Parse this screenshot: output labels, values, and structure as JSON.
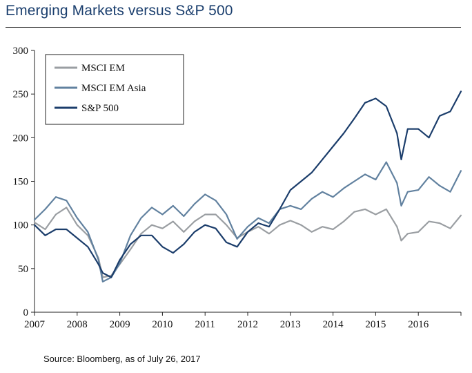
{
  "title": "Emerging Markets versus S&P 500",
  "source": "Source: Bloomberg, as of July 26, 2017",
  "chart_data": {
    "type": "line",
    "ylim": [
      0,
      300
    ],
    "yticks": [
      0,
      50,
      100,
      150,
      200,
      250,
      300
    ],
    "xlim": [
      2007,
      2017.0
    ],
    "xticks": [
      2007,
      2008,
      2009,
      2010,
      2011,
      2012,
      2013,
      2014,
      2015,
      2016
    ],
    "legend": "top-left",
    "series": [
      {
        "name": "MSCI EM",
        "color": "#9a9ea2",
        "x": [
          2007.0,
          2007.25,
          2007.5,
          2007.75,
          2008.0,
          2008.25,
          2008.5,
          2008.6,
          2008.8,
          2009.0,
          2009.25,
          2009.5,
          2009.75,
          2010.0,
          2010.25,
          2010.5,
          2010.75,
          2011.0,
          2011.25,
          2011.5,
          2011.75,
          2012.0,
          2012.25,
          2012.5,
          2012.75,
          2013.0,
          2013.25,
          2013.5,
          2013.75,
          2014.0,
          2014.25,
          2014.5,
          2014.75,
          2015.0,
          2015.25,
          2015.5,
          2015.6,
          2015.75,
          2016.0,
          2016.25,
          2016.5,
          2016.75,
          2017.0
        ],
        "values": [
          103,
          95,
          112,
          120,
          100,
          88,
          62,
          40,
          42,
          55,
          72,
          90,
          100,
          96,
          104,
          92,
          104,
          112,
          112,
          100,
          85,
          92,
          98,
          90,
          100,
          105,
          100,
          92,
          98,
          95,
          104,
          115,
          118,
          112,
          118,
          98,
          82,
          90,
          92,
          104,
          102,
          96,
          111
        ]
      },
      {
        "name": "MSCI EM Asia",
        "color": "#61819f",
        "x": [
          2007.0,
          2007.25,
          2007.5,
          2007.75,
          2008.0,
          2008.25,
          2008.5,
          2008.6,
          2008.8,
          2009.0,
          2009.25,
          2009.5,
          2009.75,
          2010.0,
          2010.25,
          2010.5,
          2010.75,
          2011.0,
          2011.25,
          2011.5,
          2011.75,
          2012.0,
          2012.25,
          2012.5,
          2012.75,
          2013.0,
          2013.25,
          2013.5,
          2013.75,
          2014.0,
          2014.25,
          2014.5,
          2014.75,
          2015.0,
          2015.25,
          2015.5,
          2015.6,
          2015.75,
          2016.0,
          2016.25,
          2016.5,
          2016.75,
          2017.0
        ],
        "values": [
          106,
          118,
          132,
          128,
          108,
          92,
          60,
          35,
          40,
          56,
          88,
          108,
          120,
          112,
          122,
          110,
          124,
          135,
          128,
          112,
          84,
          98,
          108,
          102,
          118,
          122,
          118,
          130,
          138,
          132,
          142,
          150,
          158,
          152,
          172,
          148,
          122,
          138,
          140,
          155,
          145,
          138,
          162
        ]
      },
      {
        "name": "S&P 500",
        "color": "#1b3d6b",
        "x": [
          2007.0,
          2007.25,
          2007.5,
          2007.75,
          2008.0,
          2008.25,
          2008.5,
          2008.6,
          2008.8,
          2009.0,
          2009.25,
          2009.5,
          2009.75,
          2010.0,
          2010.25,
          2010.5,
          2010.75,
          2011.0,
          2011.25,
          2011.5,
          2011.75,
          2012.0,
          2012.25,
          2012.5,
          2012.75,
          2013.0,
          2013.25,
          2013.5,
          2013.75,
          2014.0,
          2014.25,
          2014.5,
          2014.75,
          2015.0,
          2015.25,
          2015.5,
          2015.6,
          2015.75,
          2016.0,
          2016.25,
          2016.5,
          2016.75,
          2017.0
        ],
        "values": [
          100,
          88,
          95,
          95,
          85,
          75,
          55,
          45,
          40,
          60,
          78,
          88,
          88,
          75,
          68,
          78,
          92,
          100,
          96,
          80,
          75,
          92,
          102,
          98,
          118,
          140,
          150,
          160,
          175,
          190,
          205,
          222,
          240,
          245,
          236,
          205,
          175,
          210,
          210,
          200,
          225,
          230,
          253
        ]
      }
    ]
  }
}
